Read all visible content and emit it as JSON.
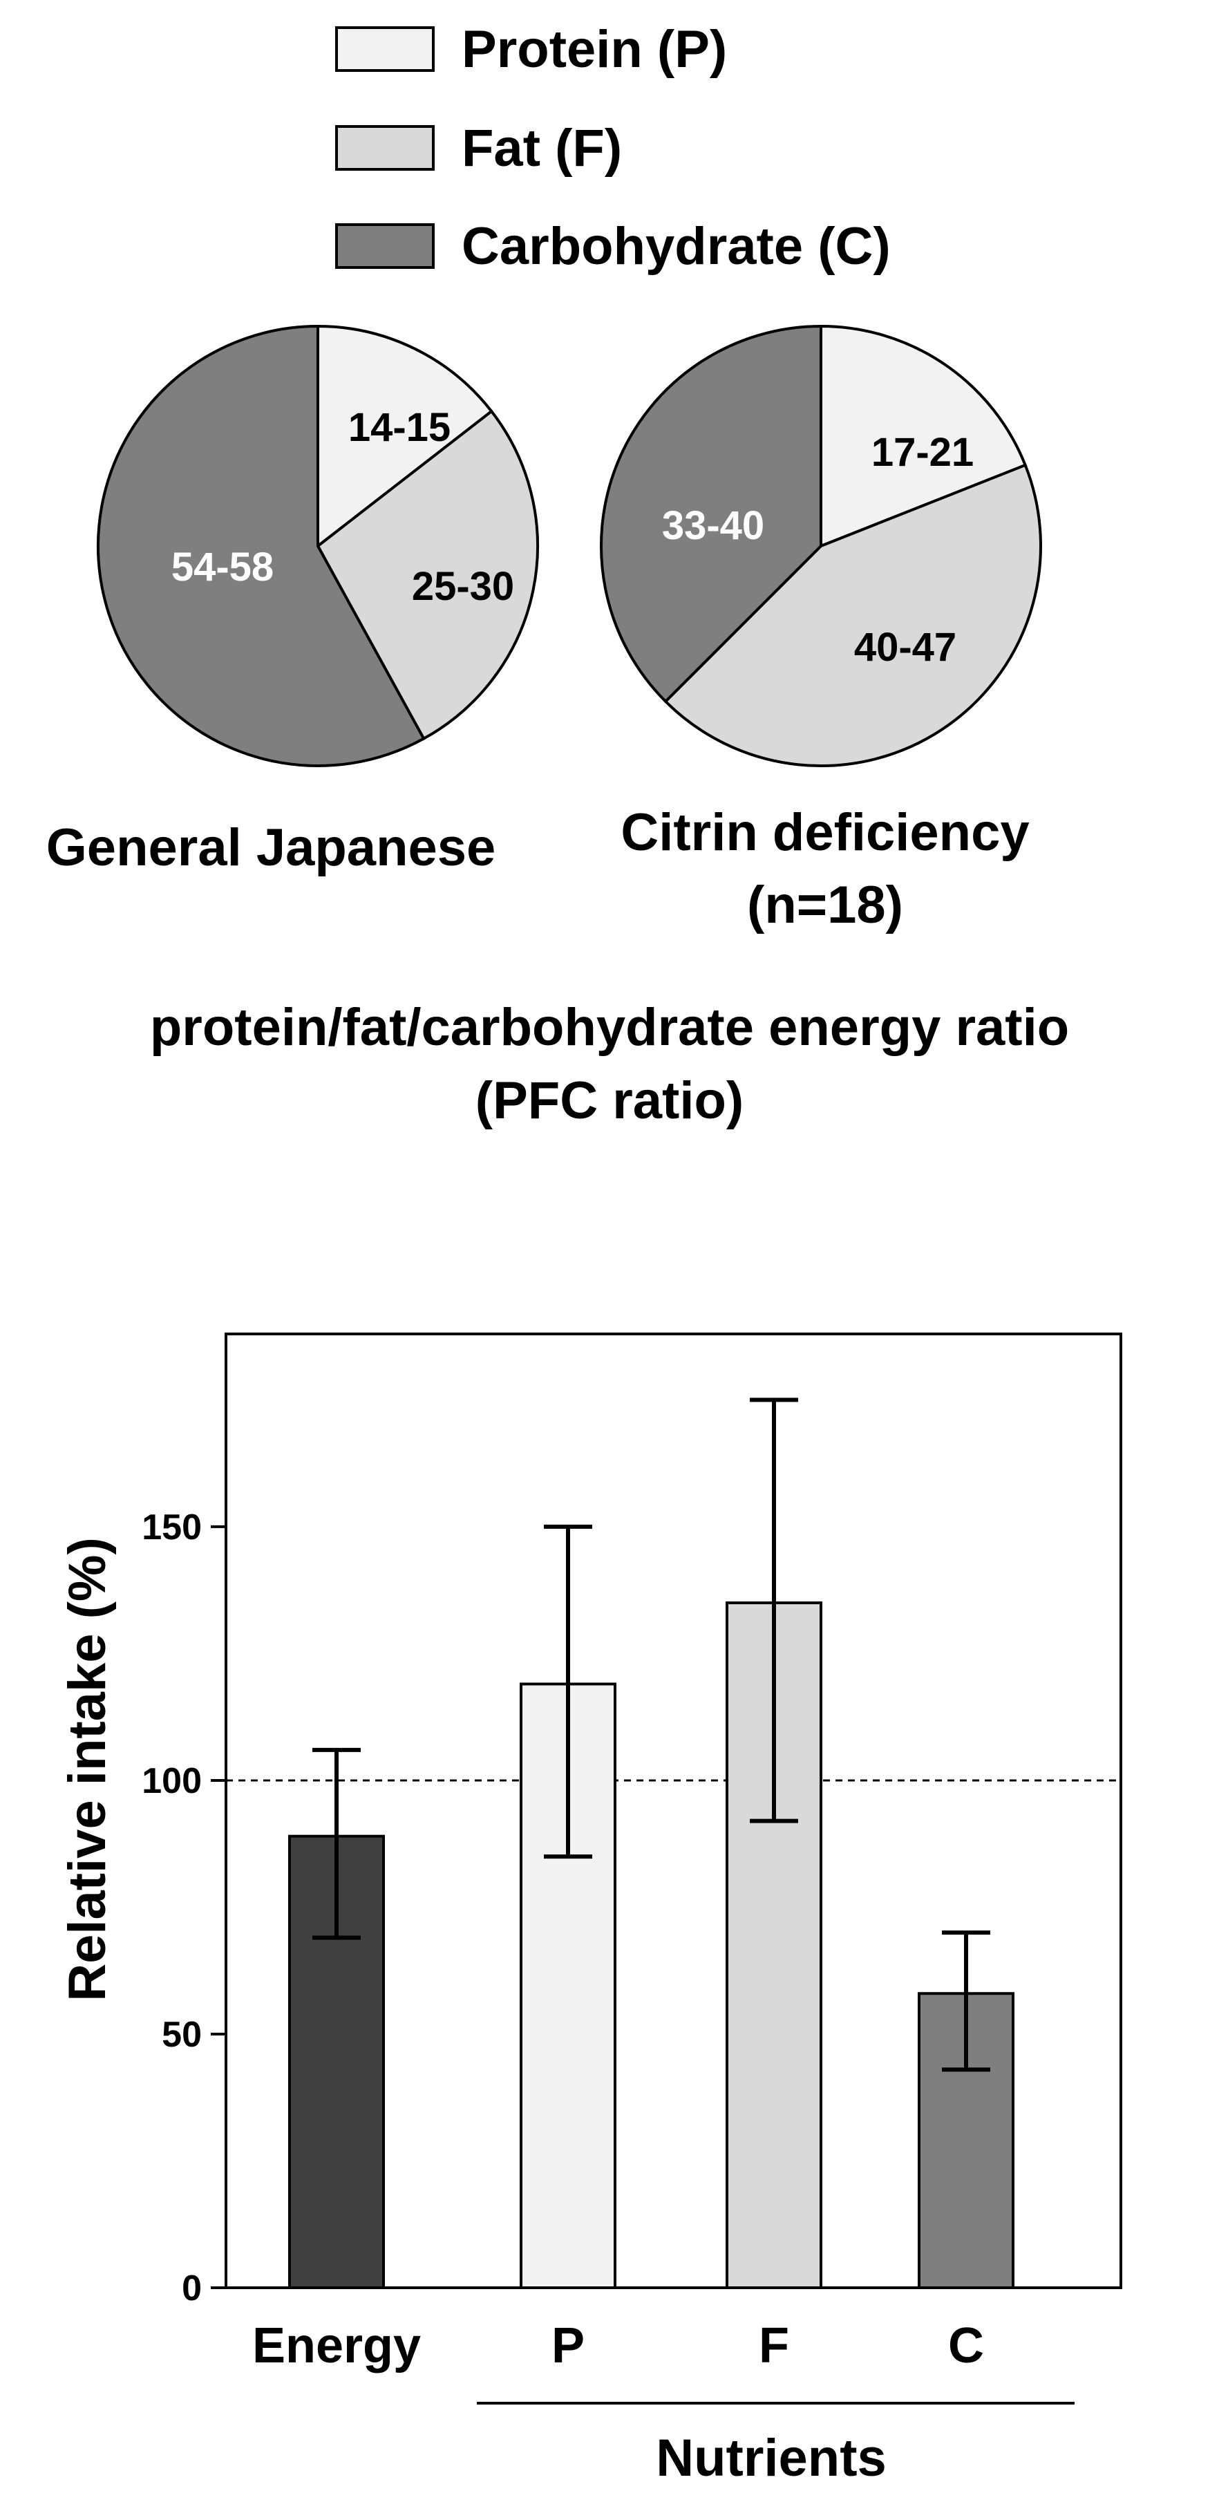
{
  "chart_data": [
    {
      "type": "pie",
      "title": "General Japanese",
      "subtitle": "",
      "slices": [
        {
          "label": "14-15",
          "value": 14.5,
          "series": "Protein (P)",
          "color": "#f2f2f2",
          "text_color": "#000000"
        },
        {
          "label": "25-30",
          "value": 27.5,
          "series": "Fat (F)",
          "color": "#d9d9d9",
          "text_color": "#000000"
        },
        {
          "label": "54-58",
          "value": 58.0,
          "series": "Carbohydrate (C)",
          "color": "#7f7f7f",
          "text_color": "#ffffff"
        }
      ]
    },
    {
      "type": "pie",
      "title": "Citrin deficiency",
      "subtitle": "(n=18)",
      "slices": [
        {
          "label": "17-21",
          "value": 19.0,
          "series": "Protein (P)",
          "color": "#f2f2f2",
          "text_color": "#000000"
        },
        {
          "label": "40-47",
          "value": 43.5,
          "series": "Fat (F)",
          "color": "#d9d9d9",
          "text_color": "#000000"
        },
        {
          "label": "33-40",
          "value": 37.5,
          "series": "Carbohydrate (C)",
          "color": "#7f7f7f",
          "text_color": "#ffffff"
        }
      ]
    },
    {
      "type": "bar",
      "title": "",
      "categories": [
        "Energy",
        "P",
        "F",
        "C"
      ],
      "values": [
        89,
        119,
        135,
        58
      ],
      "error_low": [
        69,
        85,
        92,
        43
      ],
      "error_high": [
        106,
        150,
        175,
        70
      ],
      "colors": [
        "#404040",
        "#f2f2f2",
        "#d9d9d9",
        "#7f7f7f"
      ],
      "reference_line": 100,
      "ylabel": "Relative intake (%)",
      "xlabel": "Nutrients",
      "xlabel_group": [
        "P",
        "F",
        "C"
      ],
      "ylim": [
        0,
        188
      ],
      "yticks": [
        0,
        50,
        100,
        150
      ],
      "grid": false
    }
  ],
  "legend": {
    "placement": "top",
    "items": [
      {
        "label": "Protein (P)",
        "color": "#f2f2f2"
      },
      {
        "label": "Fat (F)",
        "color": "#d9d9d9"
      },
      {
        "label": "Carbohydrate (C)",
        "color": "#7f7f7f"
      }
    ]
  },
  "pie_caption": {
    "line1": "protein/fat/carbohydrate energy ratio",
    "line2": "(PFC ratio)"
  }
}
